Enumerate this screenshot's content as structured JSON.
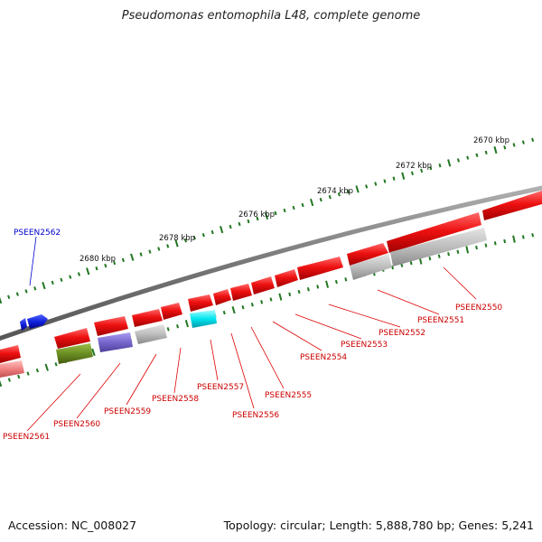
{
  "title": "Pseudomonas entomophila L48, complete genome",
  "footer": {
    "accession": "Accession: NC_008027",
    "summary": "Topology: circular; Length: 5,888,780 bp; Genes: 5,241"
  },
  "scale_labels": [
    "2670 kbp",
    "2672 kbp",
    "2674 kbp",
    "2676 kbp",
    "2678 kbp",
    "2680 kbp"
  ],
  "colors": {
    "gene_red": "#ee1111",
    "pseudo_gray": "#bbbbbb",
    "highlight_cyan": "#00e5ee",
    "blue": "#1122dd",
    "olive": "#6b8e23",
    "slate": "#7766cc",
    "light_red": "#f08080",
    "tick_green": "#227722",
    "label_red": "#cc0000",
    "label_blue": "#0000cc",
    "backbone": "#777777"
  },
  "gene_labels": [
    {
      "name": "PSEEN2550",
      "color": "red"
    },
    {
      "name": "PSEEN2551",
      "color": "red"
    },
    {
      "name": "PSEEN2552",
      "color": "red"
    },
    {
      "name": "PSEEN2553",
      "color": "red"
    },
    {
      "name": "PSEEN2554",
      "color": "red"
    },
    {
      "name": "PSEEN2555",
      "color": "red"
    },
    {
      "name": "PSEEN2556",
      "color": "red"
    },
    {
      "name": "PSEEN2557",
      "color": "red"
    },
    {
      "name": "PSEEN2558",
      "color": "red"
    },
    {
      "name": "PSEEN2559",
      "color": "red"
    },
    {
      "name": "PSEEN2560",
      "color": "red"
    },
    {
      "name": "PSEEN2561",
      "color": "red"
    },
    {
      "name": "PSEEN2562",
      "color": "blue"
    }
  ]
}
